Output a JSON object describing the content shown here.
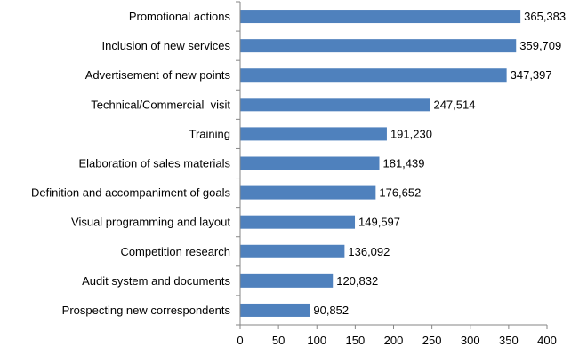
{
  "chart_data": {
    "type": "bar",
    "orientation": "horizontal",
    "categories": [
      "Promotional actions",
      "Inclusion of new services",
      "Advertisement of new points",
      "Technical/Commercial  visit",
      "Training",
      "Elaboration of sales materials",
      "Definition and accompaniment of goals",
      "Visual programming and layout",
      "Competition research",
      "Audit system and documents",
      "Prospecting new correspondents"
    ],
    "values": [
      365.383,
      359.709,
      347.397,
      247.514,
      191.23,
      181.439,
      176.652,
      149.597,
      136.092,
      120.832,
      90.852
    ],
    "value_labels": [
      "365,383",
      "359,709",
      "347,397",
      "247,514",
      "191,230",
      "181,439",
      "176,652",
      "149,597",
      "136,092",
      "120,832",
      "90,852"
    ],
    "xlim": [
      0,
      400
    ],
    "x_ticks": [
      0,
      50,
      100,
      150,
      200,
      250,
      300,
      350,
      400
    ],
    "x_tick_labels": [
      "0",
      "50",
      "100",
      "150",
      "200",
      "250",
      "300",
      "350",
      "400"
    ],
    "grid": false,
    "legend": "none",
    "bar_color": "#4F81BD",
    "title": "",
    "xlabel": "",
    "ylabel": ""
  }
}
